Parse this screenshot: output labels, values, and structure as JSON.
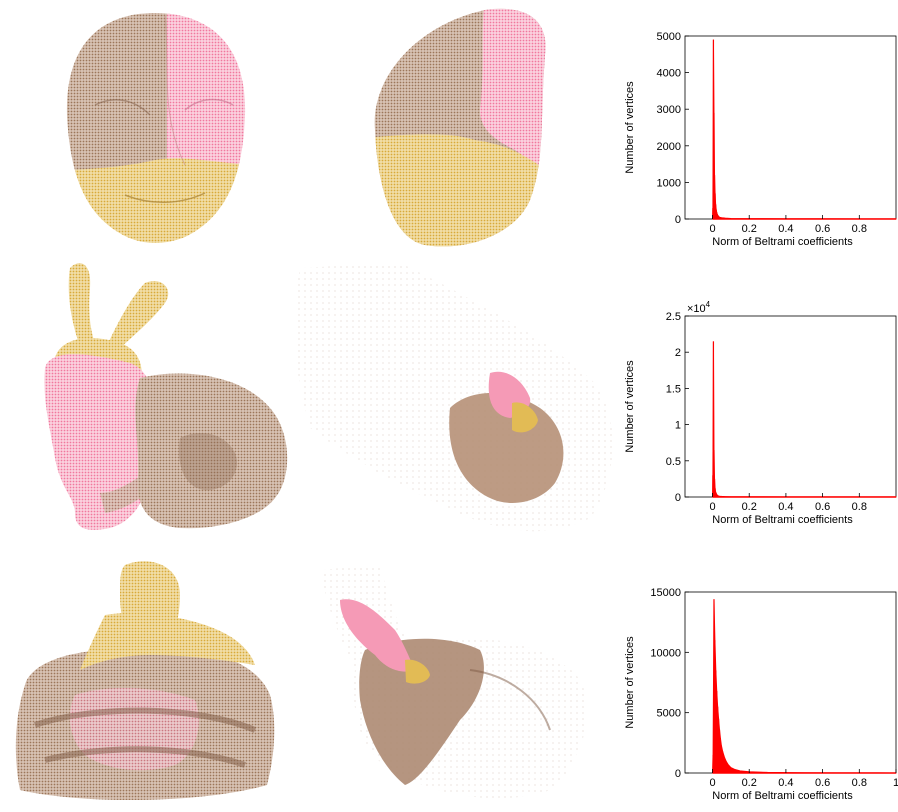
{
  "colors": {
    "brown": "#b0856a",
    "pink": "#f59ab6",
    "gold": "#e2bb55",
    "histogram": "#ff0000"
  },
  "meshes": [
    {
      "row": 1,
      "col": 1,
      "icon": "face-mesh-icon"
    },
    {
      "row": 1,
      "col": 2,
      "icon": "face-parameterization-icon"
    },
    {
      "row": 2,
      "col": 1,
      "icon": "bunny-mesh-icon"
    },
    {
      "row": 2,
      "col": 2,
      "icon": "bunny-parameterization-icon"
    },
    {
      "row": 3,
      "col": 1,
      "icon": "buddha-mesh-icon"
    },
    {
      "row": 3,
      "col": 2,
      "icon": "buddha-parameterization-icon"
    }
  ],
  "chart_data": [
    {
      "type": "histogram",
      "xlabel": "Norm of Beltrami coefficients",
      "ylabel": "Number of vertices",
      "xlim": [
        -0.15,
        1.0
      ],
      "ylim": [
        0,
        5000
      ],
      "x_ticks": [
        "0",
        "0.2",
        "0.4",
        "0.6",
        "0.8"
      ],
      "x_tick_values": [
        0,
        0.2,
        0.4,
        0.6,
        0.8
      ],
      "y_ticks": [
        "0",
        "1000",
        "2000",
        "3000",
        "4000",
        "5000"
      ],
      "y_tick_values": [
        0,
        1000,
        2000,
        3000,
        4000,
        5000
      ],
      "exponent_label": "",
      "bins": {
        "x": [
          0.002,
          0.005,
          0.008,
          0.011,
          0.014,
          0.017,
          0.02,
          0.023,
          0.026,
          0.029,
          0.032,
          0.035,
          0.04,
          0.05,
          0.07,
          0.1,
          0.2,
          0.4,
          0.6,
          0.8,
          1.0
        ],
        "values": [
          300,
          4900,
          2900,
          1200,
          700,
          400,
          260,
          180,
          130,
          100,
          80,
          60,
          45,
          35,
          25,
          15,
          10,
          8,
          6,
          5,
          4
        ]
      }
    },
    {
      "type": "histogram",
      "xlabel": "Norm of Beltrami coefficients",
      "ylabel": "Number of vertices",
      "xlim": [
        -0.15,
        1.0
      ],
      "ylim": [
        0,
        2.5
      ],
      "x_ticks": [
        "0",
        "0.2",
        "0.4",
        "0.6",
        "0.8"
      ],
      "x_tick_values": [
        0,
        0.2,
        0.4,
        0.6,
        0.8
      ],
      "y_ticks": [
        "0",
        "0.5",
        "1",
        "1.5",
        "2",
        "2.5"
      ],
      "y_tick_values": [
        0,
        0.5,
        1,
        1.5,
        2,
        2.5
      ],
      "exponent_base": "×10",
      "exponent_power": "4",
      "bins": {
        "x": [
          0.002,
          0.005,
          0.008,
          0.011,
          0.014,
          0.017,
          0.02,
          0.023,
          0.026,
          0.029,
          0.032,
          0.035,
          0.04,
          0.05,
          0.07,
          0.1,
          0.2,
          0.4,
          0.6,
          0.8,
          1.0
        ],
        "values": [
          0.3,
          2.15,
          0.65,
          0.25,
          0.12,
          0.07,
          0.05,
          0.035,
          0.025,
          0.02,
          0.015,
          0.012,
          0.01,
          0.008,
          0.006,
          0.004,
          0.003,
          0.002,
          0.002,
          0.001,
          0.001
        ]
      }
    },
    {
      "type": "histogram",
      "xlabel": "Norm of Beltrami coefficients",
      "ylabel": "Number of vertices",
      "xlim": [
        -0.15,
        1.0
      ],
      "ylim": [
        0,
        15000
      ],
      "x_ticks": [
        "0",
        "0.2",
        "0.4",
        "0.6",
        "0.8",
        "1"
      ],
      "x_tick_values": [
        0,
        0.2,
        0.4,
        0.6,
        0.8,
        1.0
      ],
      "y_ticks": [
        "0",
        "5000",
        "10000",
        "15000"
      ],
      "y_tick_values": [
        0,
        5000,
        10000,
        15000
      ],
      "exponent_label": "",
      "bins": {
        "x": [
          0.003,
          0.008,
          0.013,
          0.018,
          0.023,
          0.028,
          0.033,
          0.038,
          0.043,
          0.048,
          0.055,
          0.065,
          0.075,
          0.085,
          0.1,
          0.12,
          0.15,
          0.2,
          0.3,
          0.5,
          0.7,
          0.9,
          1.0
        ],
        "values": [
          1500,
          14400,
          11000,
          8500,
          6800,
          5500,
          4500,
          3600,
          2900,
          2300,
          1800,
          1300,
          950,
          700,
          450,
          300,
          180,
          100,
          50,
          25,
          12,
          6,
          3
        ]
      }
    }
  ]
}
